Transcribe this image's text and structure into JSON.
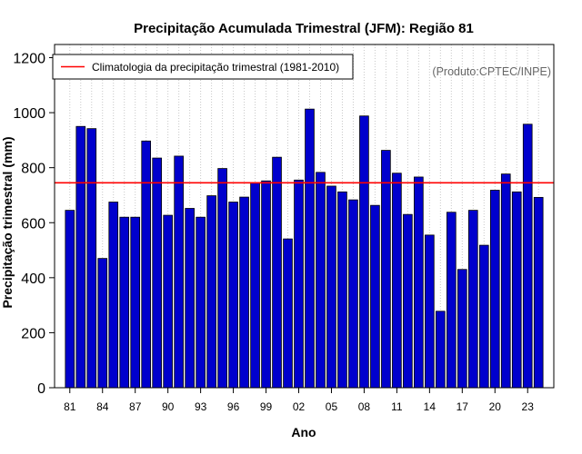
{
  "chart_data": {
    "type": "bar",
    "title": "Precipitação Acumulada Trimestral (JFM): Região 81",
    "xlabel": "Ano",
    "ylabel": "Precipitação trimestral (mm)",
    "credit": "(Produto:CPTEC/INPE)",
    "legend": {
      "label": "Climatologia da precipitação trimestral (1981-2010)",
      "position": "top-left"
    },
    "climatology": 745,
    "ylim": [
      0,
      1200
    ],
    "yticks": [
      0,
      200,
      400,
      600,
      800,
      1000,
      1200
    ],
    "categories": [
      "81",
      "82",
      "83",
      "84",
      "85",
      "86",
      "87",
      "88",
      "89",
      "90",
      "91",
      "92",
      "93",
      "94",
      "95",
      "96",
      "97",
      "98",
      "99",
      "00",
      "01",
      "02",
      "03",
      "04",
      "05",
      "06",
      "07",
      "08",
      "09",
      "10",
      "11",
      "12",
      "13",
      "14",
      "15",
      "16",
      "17",
      "18",
      "19",
      "20",
      "21",
      "22",
      "23",
      "24"
    ],
    "xtick_labels": [
      "81",
      "84",
      "87",
      "90",
      "93",
      "96",
      "99",
      "02",
      "05",
      "08",
      "11",
      "14",
      "17",
      "20",
      "23"
    ],
    "values": [
      645,
      950,
      942,
      470,
      675,
      620,
      620,
      897,
      835,
      627,
      842,
      652,
      620,
      698,
      797,
      675,
      693,
      745,
      752,
      838,
      541,
      755,
      1013,
      783,
      733,
      712,
      683,
      988,
      663,
      863,
      780,
      630,
      766,
      555,
      278,
      638,
      430,
      645,
      518,
      718,
      777,
      712,
      958,
      692
    ],
    "grid": true
  },
  "colors": {
    "bar_fill": "#0000cd",
    "climatology_line": "#ff0000",
    "grid": "#c8c8c8"
  }
}
